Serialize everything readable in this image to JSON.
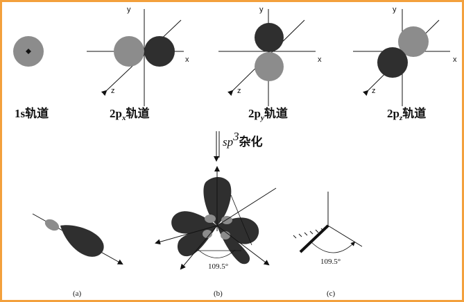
{
  "orbitals": [
    {
      "label_main": "1s轨道"
    },
    {
      "label_main": "2p",
      "label_sub": "x",
      "label_tail": "轨道"
    },
    {
      "label_main": "2p",
      "label_sub": "y",
      "label_tail": "轨道"
    },
    {
      "label_main": "2p",
      "label_sub": "z",
      "label_tail": "轨道"
    }
  ],
  "axes": {
    "x": "x",
    "y": "y",
    "z": "z"
  },
  "hybridization": {
    "sp": "sp",
    "superscript": "3",
    "tail": "杂化"
  },
  "panels": [
    {
      "label": "(a)"
    },
    {
      "label": "(b)",
      "angle": "109.5°"
    },
    {
      "label": "(c)",
      "angle": "109.5°"
    }
  ],
  "colors": {
    "dark_lobe": "#2f2f2f",
    "light_lobe": "#8c8c8c",
    "frame": "#f3a03c"
  }
}
